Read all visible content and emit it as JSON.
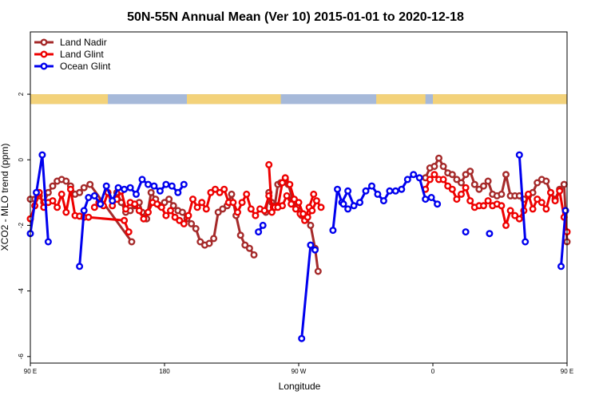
{
  "chart_data": {
    "type": "line",
    "title": "50N-55N Annual Mean (Ver 10)   2015-01-01 to 2020-12-18",
    "xlabel": "Longitude",
    "ylabel": "XCO2 - MLO trend (ppm)",
    "xlim": [
      90,
      450
    ],
    "ylim": [
      -6.2,
      3.9
    ],
    "x_ticks": [
      {
        "value": 90,
        "label": "90 E"
      },
      {
        "value": 180,
        "label": "180"
      },
      {
        "value": 270,
        "label": "90 W"
      },
      {
        "value": 360,
        "label": "0"
      },
      {
        "value": 450,
        "label": "90 E"
      },
      {
        "value": 540,
        "label": "180"
      }
    ],
    "y_ticks": [
      -6,
      -4,
      -2,
      0,
      2
    ],
    "legend_position": "top-left",
    "land_ocean_strip": {
      "y_range": [
        1.7,
        2.0
      ],
      "land_color": "#f3d27a",
      "ocean_color": "#a6b9d9"
    },
    "series": [
      {
        "name": "Land Nadir",
        "color": "#a52a2a",
        "segments": [
          [
            [
              90,
              -1.2
            ],
            [
              93,
              -1.2
            ],
            [
              96,
              -1.1
            ],
            [
              99,
              -1.3
            ],
            [
              102,
              -1.0
            ],
            [
              105,
              -0.8
            ],
            [
              108,
              -0.65
            ],
            [
              111,
              -0.6
            ],
            [
              114,
              -0.65
            ],
            [
              117,
              -0.8
            ],
            [
              120,
              -1.05
            ],
            [
              123,
              -1.0
            ],
            [
              126,
              -0.85
            ],
            [
              130,
              -0.75
            ],
            [
              158,
              -2.5
            ]
          ],
          [
            [
              148,
              -1.0
            ],
            [
              151,
              -1.3
            ],
            [
              154,
              -1.6
            ],
            [
              157,
              -1.55
            ],
            [
              160,
              -1.4
            ],
            [
              163,
              -1.3
            ],
            [
              165,
              -1.6
            ],
            [
              168,
              -1.8
            ],
            [
              171,
              -1.0
            ],
            [
              174,
              -1.2
            ],
            [
              177,
              -1.4
            ],
            [
              180,
              -1.3
            ],
            [
              183,
              -1.2
            ],
            [
              186,
              -1.4
            ],
            [
              189,
              -1.55
            ],
            [
              192,
              -1.6
            ],
            [
              195,
              -1.8
            ],
            [
              198,
              -1.95
            ],
            [
              201,
              -2.1
            ],
            [
              204,
              -2.5
            ],
            [
              207,
              -2.6
            ],
            [
              210,
              -2.55
            ],
            [
              213,
              -2.4
            ],
            [
              216,
              -1.6
            ],
            [
              219,
              -1.5
            ],
            [
              222,
              -1.4
            ],
            [
              225,
              -1.05
            ],
            [
              228,
              -1.7
            ],
            [
              231,
              -2.3
            ],
            [
              234,
              -2.6
            ],
            [
              237,
              -2.7
            ],
            [
              240,
              -2.9
            ]
          ],
          [
            [
              248,
              -1.6
            ],
            [
              250,
              -1.0
            ],
            [
              252,
              -1.3
            ],
            [
              254,
              -1.4
            ],
            [
              256,
              -0.75
            ],
            [
              258,
              -0.7
            ],
            [
              261,
              -0.6
            ],
            [
              263,
              -0.75
            ],
            [
              266,
              -1.2
            ],
            [
              269,
              -1.45
            ],
            [
              272,
              -1.7
            ],
            [
              275,
              -1.8
            ],
            [
              278,
              -2.0
            ],
            [
              281,
              -2.7
            ],
            [
              283,
              -3.4
            ]
          ],
          [
            [
              355,
              -0.55
            ],
            [
              358,
              -0.25
            ],
            [
              361,
              -0.2
            ],
            [
              364,
              0.05
            ],
            [
              367,
              -0.2
            ],
            [
              370,
              -0.4
            ],
            [
              373,
              -0.45
            ],
            [
              376,
              -0.6
            ],
            [
              379,
              -0.7
            ],
            [
              382,
              -0.45
            ],
            [
              385,
              -0.35
            ],
            [
              388,
              -0.75
            ],
            [
              391,
              -0.9
            ],
            [
              394,
              -0.8
            ],
            [
              397,
              -0.65
            ],
            [
              400,
              -1.05
            ],
            [
              403,
              -1.1
            ],
            [
              406,
              -1.05
            ],
            [
              409,
              -0.45
            ],
            [
              412,
              -1.1
            ],
            [
              415,
              -1.1
            ],
            [
              418,
              -1.1
            ],
            [
              421,
              -1.2
            ],
            [
              424,
              -1.1
            ],
            [
              427,
              -1.0
            ],
            [
              430,
              -0.7
            ],
            [
              433,
              -0.6
            ],
            [
              436,
              -0.65
            ],
            [
              439,
              -1.0
            ],
            [
              442,
              -1.2
            ],
            [
              445,
              -0.9
            ],
            [
              448,
              -0.75
            ],
            [
              450,
              -2.5
            ]
          ]
        ]
      },
      {
        "name": "Land Glint",
        "color": "#ee0000",
        "segments": [
          [
            [
              90,
              -1.8
            ],
            [
              93,
              -1.4
            ],
            [
              96,
              -1.0
            ],
            [
              99,
              -1.45
            ],
            [
              102,
              -1.3
            ],
            [
              105,
              -1.25
            ],
            [
              108,
              -1.45
            ],
            [
              111,
              -1.05
            ],
            [
              114,
              -1.6
            ],
            [
              117,
              -0.9
            ],
            [
              120,
              -1.7
            ],
            [
              123,
              -1.72
            ],
            [
              126,
              -1.75
            ],
            [
              129,
              -1.75
            ],
            [
              153,
              -1.85
            ],
            [
              156,
              -2.2
            ]
          ],
          [
            [
              133,
              -1.45
            ],
            [
              136,
              -1.3
            ],
            [
              139,
              -1.4
            ],
            [
              142,
              -1.0
            ],
            [
              145,
              -1.4
            ],
            [
              148,
              -1.2
            ],
            [
              151,
              -0.95
            ],
            [
              154,
              -1.5
            ],
            [
              157,
              -1.3
            ],
            [
              160,
              -1.35
            ],
            [
              163,
              -1.55
            ],
            [
              166,
              -1.8
            ],
            [
              169,
              -1.6
            ],
            [
              172,
              -1.3
            ],
            [
              175,
              -1.35
            ],
            [
              178,
              -1.45
            ],
            [
              181,
              -1.7
            ],
            [
              184,
              -1.55
            ],
            [
              187,
              -1.75
            ],
            [
              190,
              -1.85
            ],
            [
              193,
              -1.95
            ],
            [
              196,
              -1.7
            ],
            [
              199,
              -1.2
            ],
            [
              202,
              -1.45
            ],
            [
              205,
              -1.3
            ],
            [
              208,
              -1.5
            ],
            [
              211,
              -1.0
            ],
            [
              214,
              -0.9
            ],
            [
              217,
              -1.0
            ],
            [
              220,
              -0.9
            ],
            [
              223,
              -1.3
            ],
            [
              226,
              -1.3
            ],
            [
              229,
              -1.6
            ],
            [
              232,
              -1.3
            ],
            [
              235,
              -1.05
            ],
            [
              238,
              -1.5
            ],
            [
              241,
              -1.7
            ],
            [
              244,
              -1.5
            ],
            [
              247,
              -1.55
            ],
            [
              250,
              -1.1
            ],
            [
              253,
              -1.45
            ],
            [
              256,
              -1.4
            ],
            [
              259,
              -1.4
            ],
            [
              262,
              -1.1
            ],
            [
              265,
              -1.35
            ],
            [
              268,
              -1.5
            ],
            [
              271,
              -1.65
            ],
            [
              274,
              -1.85
            ],
            [
              277,
              -1.45
            ],
            [
              280,
              -1.05
            ]
          ],
          [
            [
              250,
              -0.15
            ],
            [
              252,
              -1.6
            ],
            [
              254,
              -1.45
            ],
            [
              256,
              -1.45
            ],
            [
              259,
              -0.7
            ],
            [
              261,
              -0.55
            ],
            [
              264,
              -0.75
            ],
            [
              267,
              -1.2
            ],
            [
              270,
              -1.3
            ],
            [
              273,
              -1.65
            ],
            [
              276,
              -1.75
            ],
            [
              279,
              -1.55
            ],
            [
              282,
              -1.25
            ],
            [
              285,
              -1.45
            ]
          ],
          [
            [
              355,
              -0.9
            ],
            [
              358,
              -0.6
            ],
            [
              361,
              -0.45
            ],
            [
              364,
              -0.6
            ],
            [
              367,
              -0.6
            ],
            [
              370,
              -0.8
            ],
            [
              373,
              -0.9
            ],
            [
              376,
              -1.2
            ],
            [
              379,
              -1.05
            ],
            [
              382,
              -0.85
            ],
            [
              385,
              -1.25
            ],
            [
              388,
              -1.45
            ],
            [
              391,
              -1.4
            ],
            [
              394,
              -1.4
            ],
            [
              397,
              -1.25
            ],
            [
              400,
              -1.4
            ],
            [
              403,
              -1.35
            ],
            [
              406,
              -1.4
            ],
            [
              409,
              -2.0
            ],
            [
              412,
              -1.55
            ],
            [
              415,
              -1.7
            ],
            [
              418,
              -1.8
            ],
            [
              421,
              -1.55
            ],
            [
              424,
              -1.05
            ],
            [
              427,
              -1.5
            ],
            [
              430,
              -1.2
            ],
            [
              433,
              -1.3
            ],
            [
              436,
              -1.5
            ],
            [
              439,
              -1.0
            ],
            [
              442,
              -1.25
            ],
            [
              445,
              -0.95
            ],
            [
              448,
              -1.75
            ],
            [
              450,
              -2.2
            ]
          ]
        ]
      },
      {
        "name": "Ocean Glint",
        "color": "#0000ee",
        "segments": [
          [
            [
              90,
              -2.25
            ],
            [
              94,
              -1.0
            ],
            [
              98,
              0.15
            ],
            [
              102,
              -2.5
            ]
          ],
          [
            [
              123,
              -3.25
            ],
            [
              126,
              -1.55
            ],
            [
              129,
              -1.15
            ],
            [
              133,
              -1.1
            ],
            [
              137,
              -1.35
            ],
            [
              141,
              -0.8
            ],
            [
              145,
              -1.25
            ],
            [
              149,
              -0.85
            ],
            [
              153,
              -0.9
            ],
            [
              157,
              -0.85
            ],
            [
              161,
              -1.05
            ],
            [
              165,
              -0.6
            ],
            [
              169,
              -0.75
            ],
            [
              173,
              -0.8
            ],
            [
              177,
              -0.95
            ],
            [
              181,
              -0.75
            ],
            [
              185,
              -0.8
            ],
            [
              189,
              -1.0
            ],
            [
              193,
              -0.75
            ]
          ],
          [
            [
              243,
              -2.2
            ],
            [
              246,
              -2.0
            ]
          ],
          [
            [
              272,
              -5.45
            ],
            [
              278,
              -2.6
            ],
            [
              281,
              -2.75
            ]
          ],
          [
            [
              293,
              -2.15
            ],
            [
              296,
              -0.9
            ],
            [
              299,
              -1.3
            ],
            [
              303,
              -0.95
            ],
            [
              307,
              -1.4
            ],
            [
              311,
              -1.3
            ],
            [
              315,
              -0.95
            ],
            [
              319,
              -0.8
            ],
            [
              323,
              -1.05
            ],
            [
              327,
              -1.25
            ],
            [
              331,
              -0.95
            ],
            [
              335,
              -0.95
            ],
            [
              339,
              -0.9
            ],
            [
              343,
              -0.6
            ],
            [
              347,
              -0.45
            ],
            [
              351,
              -0.55
            ],
            [
              355,
              -1.2
            ],
            [
              359,
              -1.15
            ],
            [
              363,
              -1.35
            ]
          ],
          [
            [
              300,
              -1.35
            ],
            [
              303,
              -1.5
            ]
          ],
          [
            [
              382,
              -2.2
            ]
          ],
          [
            [
              398,
              -2.25
            ]
          ],
          [
            [
              418,
              0.15
            ],
            [
              422,
              -2.5
            ]
          ],
          [
            [
              446,
              -3.25
            ],
            [
              449,
              -1.55
            ]
          ]
        ]
      }
    ]
  }
}
